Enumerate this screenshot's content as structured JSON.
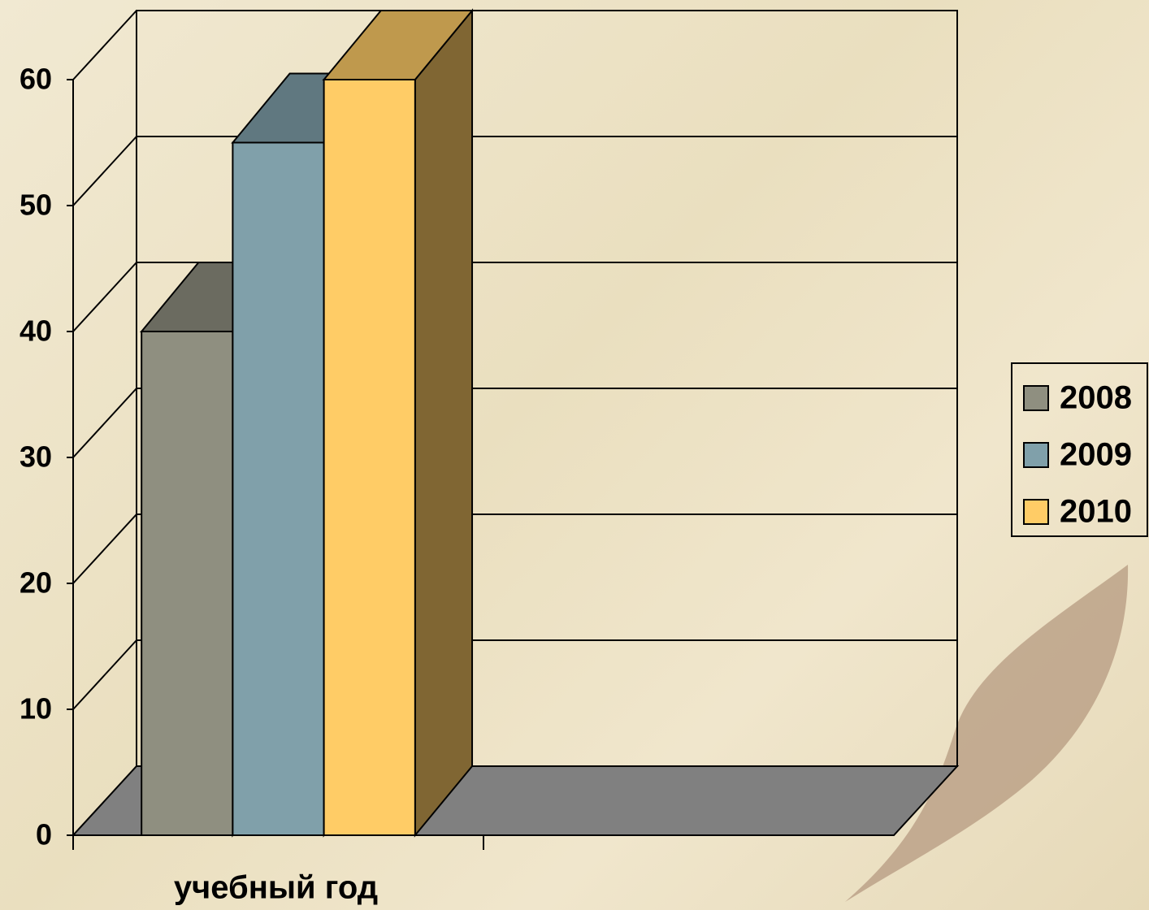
{
  "chart_data": {
    "type": "bar3d",
    "categories": [
      "учебный год",
      null
    ],
    "series": [
      {
        "name": "2008",
        "color": "#8f8f80",
        "values": [
          40,
          null
        ]
      },
      {
        "name": "2009",
        "color": "#80a0aa",
        "values": [
          55,
          null
        ]
      },
      {
        "name": "2010",
        "color": "#ffcc66",
        "values": [
          60,
          null
        ]
      }
    ],
    "ylim": [
      0,
      60
    ],
    "yticks": [
      0,
      10,
      20,
      30,
      40,
      50,
      60
    ],
    "grid": true,
    "legend": "right"
  }
}
